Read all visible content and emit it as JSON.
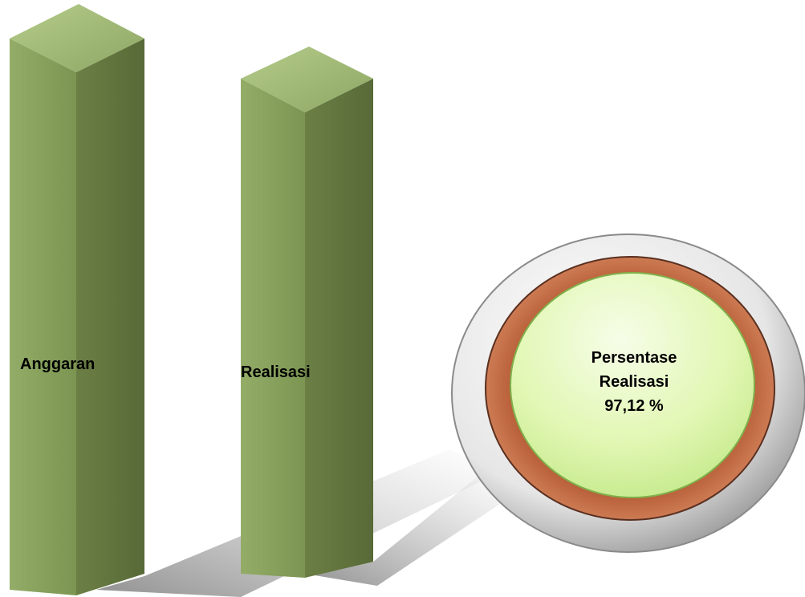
{
  "pillars": [
    {
      "label": "Anggaran"
    },
    {
      "label": "Realisasi"
    }
  ],
  "badge": {
    "lines": [
      "Persentase",
      "Realisasi",
      "97,12 %"
    ]
  }
}
